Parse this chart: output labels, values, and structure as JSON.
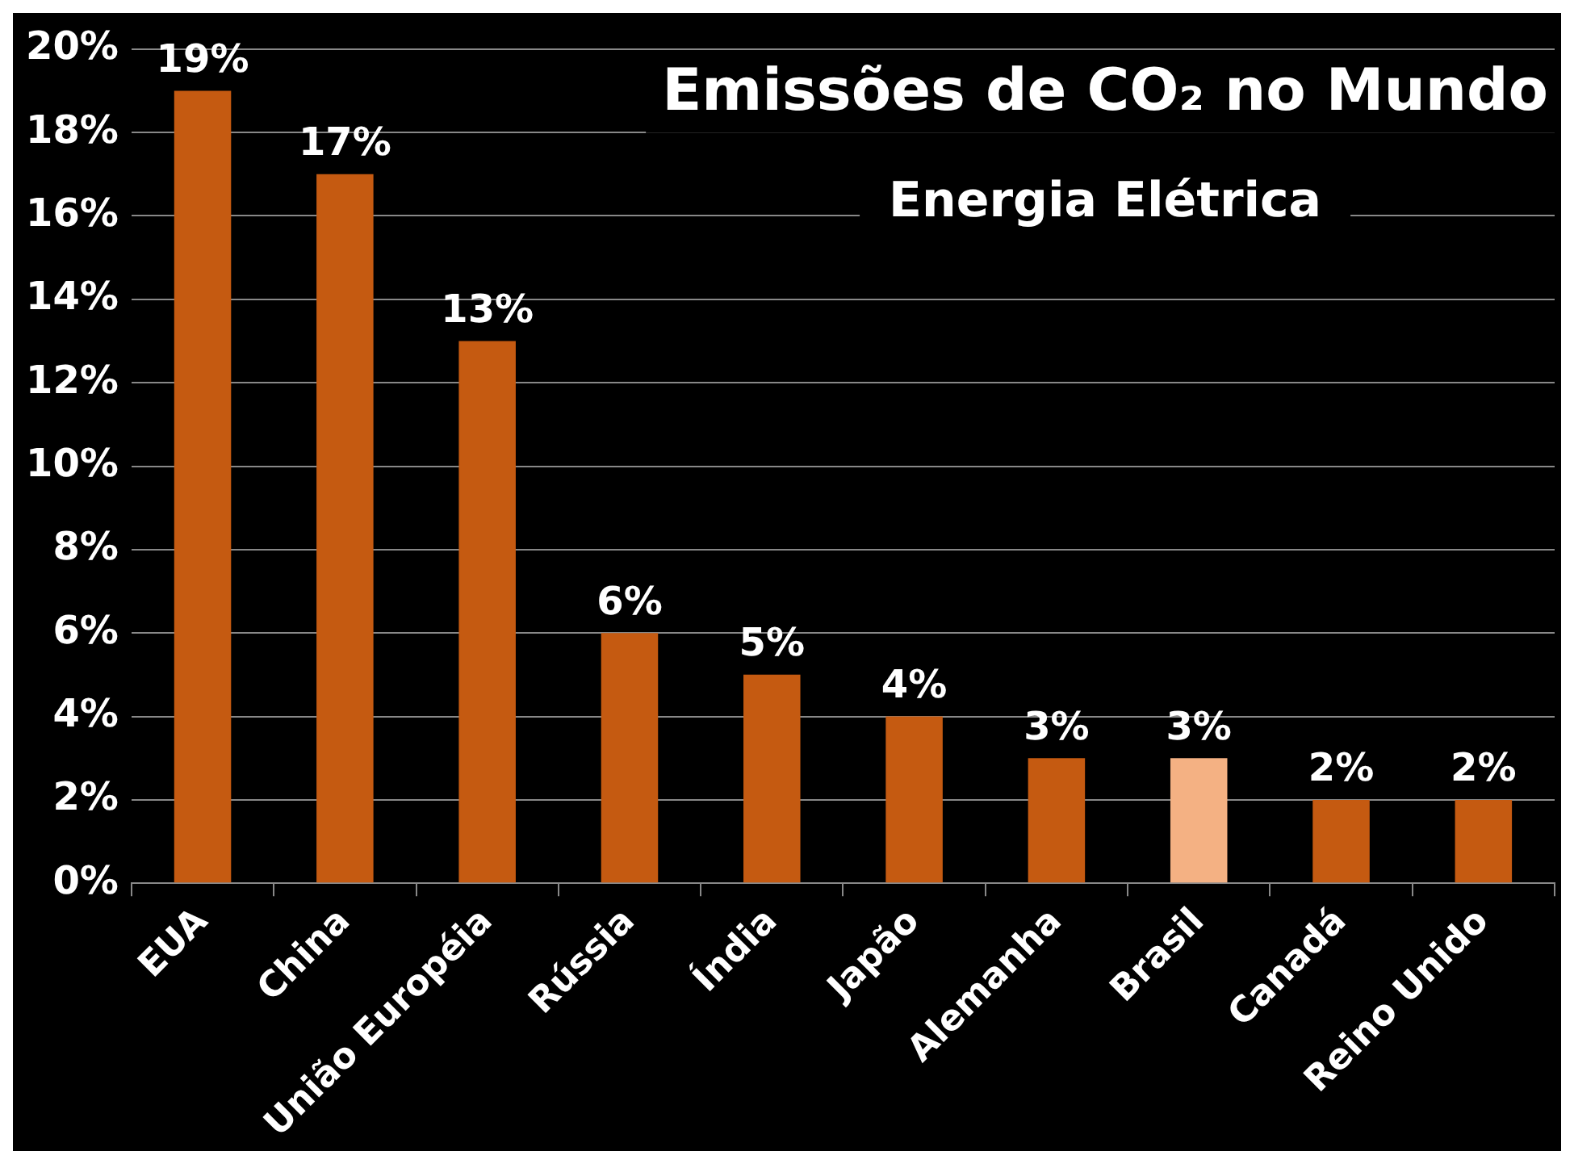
{
  "chart_data": {
    "type": "bar",
    "title": "Emissões de CO₂ no Mundo",
    "subtitle": "Energia Elétrica",
    "categories": [
      "EUA",
      "China",
      "União Européia",
      "Rússia",
      "Índia",
      "Japão",
      "Alemanha",
      "Brasil",
      "Canadá",
      "Reino Unido"
    ],
    "values": [
      19,
      17,
      13,
      6,
      5,
      4,
      3,
      3,
      2,
      2
    ],
    "colors": [
      "#c55a11",
      "#c55a11",
      "#c55a11",
      "#c55a11",
      "#c55a11",
      "#c55a11",
      "#c55a11",
      "#f4b183",
      "#c55a11",
      "#c55a11"
    ],
    "value_labels": [
      "19%",
      "17%",
      "13%",
      "6%",
      "5%",
      "4%",
      "3%",
      "3%",
      "2%",
      "2%"
    ],
    "ylim": [
      0,
      20
    ],
    "yticks": [
      {
        "value": 0,
        "label": "0%"
      },
      {
        "value": 2,
        "label": "2%"
      },
      {
        "value": 4,
        "label": "4%"
      },
      {
        "value": 6,
        "label": "6%"
      },
      {
        "value": 8,
        "label": "8%"
      },
      {
        "value": 10,
        "label": "10%"
      },
      {
        "value": 12,
        "label": "12%"
      },
      {
        "value": 14,
        "label": "14%"
      },
      {
        "value": 16,
        "label": "16%"
      },
      {
        "value": 18,
        "label": "18%"
      },
      {
        "value": 20,
        "label": "20%"
      }
    ],
    "grid": "y",
    "legend": false
  }
}
